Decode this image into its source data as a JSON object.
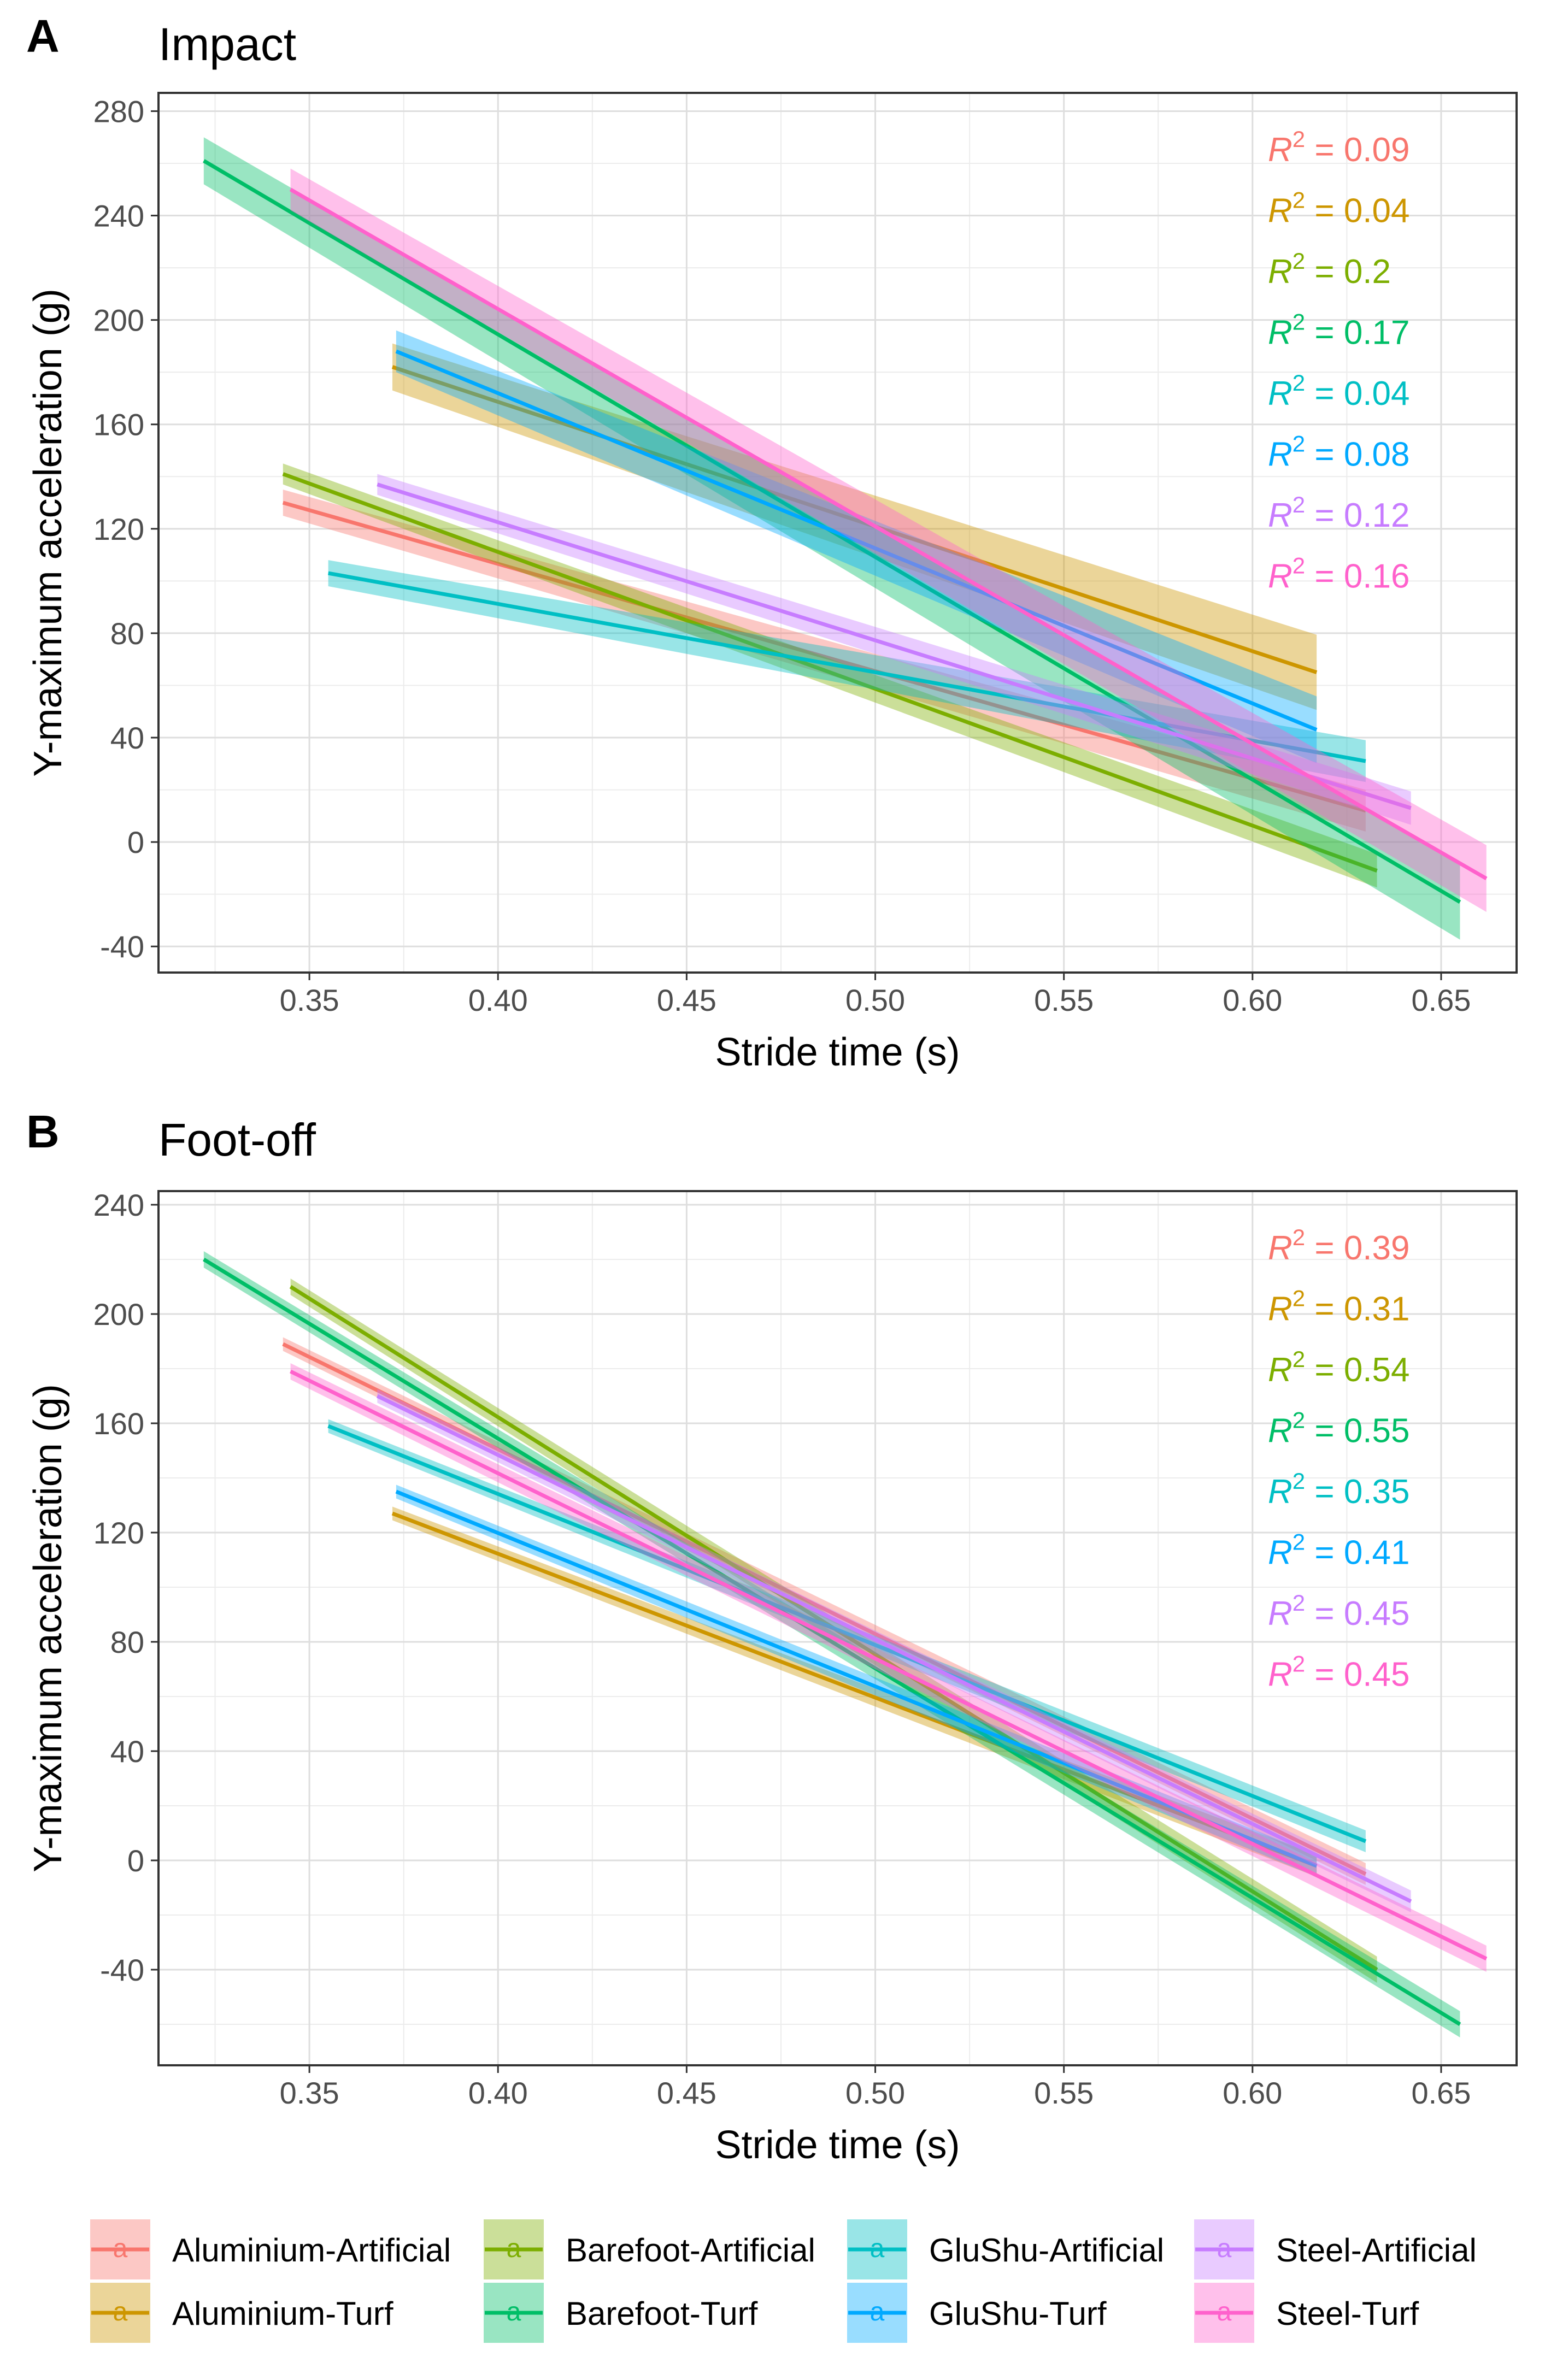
{
  "figure": {
    "panel_a_letter": "A",
    "panel_b_letter": "B"
  },
  "chart_data": [
    {
      "type": "line",
      "panel": "A",
      "title": "Impact",
      "xlabel": "Stride time (s)",
      "ylabel": "Y-maximum acceleration (g)",
      "xlim": [
        0.31,
        0.67
      ],
      "ylim": [
        -50,
        287
      ],
      "xticks": [
        0.35,
        0.4,
        0.45,
        0.5,
        0.55,
        0.6,
        0.65
      ],
      "xtick_labels": [
        "0.35",
        "0.40",
        "0.45",
        "0.50",
        "0.55",
        "0.60",
        "0.65"
      ],
      "yticks": [
        -40,
        0,
        40,
        80,
        120,
        160,
        200,
        240,
        280
      ],
      "ytick_labels": [
        "-40",
        "0",
        "40",
        "80",
        "120",
        "160",
        "200",
        "240",
        "280"
      ],
      "grid": true,
      "series": [
        {
          "name": "Aluminium-Artificial",
          "color": "#F8766D",
          "x": [
            0.343,
            0.63
          ],
          "y": [
            130,
            12
          ],
          "ci": 5,
          "r2": "0.09"
        },
        {
          "name": "Aluminium-Turf",
          "color": "#CD9600",
          "x": [
            0.372,
            0.617
          ],
          "y": [
            182,
            65
          ],
          "ci": 9,
          "r2": "0.04"
        },
        {
          "name": "Barefoot-Artificial",
          "color": "#7CAE00",
          "x": [
            0.343,
            0.633
          ],
          "y": [
            141,
            -11
          ],
          "ci": 4,
          "r2": "0.2"
        },
        {
          "name": "Barefoot-Turf",
          "color": "#00BE67",
          "x": [
            0.322,
            0.655
          ],
          "y": [
            261,
            -23
          ],
          "ci": 9,
          "r2": "0.17"
        },
        {
          "name": "GluShu-Artificial",
          "color": "#00BFC4",
          "x": [
            0.355,
            0.63
          ],
          "y": [
            103,
            31
          ],
          "ci": 5,
          "r2": "0.04"
        },
        {
          "name": "GluShu-Turf",
          "color": "#00A9FF",
          "x": [
            0.373,
            0.617
          ],
          "y": [
            188,
            43
          ],
          "ci": 8,
          "r2": "0.08"
        },
        {
          "name": "Steel-Artificial",
          "color": "#C77CFF",
          "x": [
            0.368,
            0.642
          ],
          "y": [
            137,
            13
          ],
          "ci": 4,
          "r2": "0.12"
        },
        {
          "name": "Steel-Turf",
          "color": "#FF61CC",
          "x": [
            0.345,
            0.662
          ],
          "y": [
            250,
            -14
          ],
          "ci": 8,
          "r2": "0.16"
        }
      ]
    },
    {
      "type": "line",
      "panel": "B",
      "title": "Foot-off",
      "xlabel": "Stride time (s)",
      "ylabel": "Y-maximum acceleration (g)",
      "xlim": [
        0.31,
        0.67
      ],
      "ylim": [
        -75,
        245
      ],
      "xticks": [
        0.35,
        0.4,
        0.45,
        0.5,
        0.55,
        0.6,
        0.65
      ],
      "xtick_labels": [
        "0.35",
        "0.40",
        "0.45",
        "0.50",
        "0.55",
        "0.60",
        "0.65"
      ],
      "yticks": [
        -40,
        0,
        40,
        80,
        120,
        160,
        200,
        240
      ],
      "ytick_labels": [
        "-40",
        "0",
        "40",
        "80",
        "120",
        "160",
        "200",
        "240"
      ],
      "grid": true,
      "series": [
        {
          "name": "Aluminium-Artificial",
          "color": "#F8766D",
          "x": [
            0.343,
            0.63
          ],
          "y": [
            189,
            -5
          ],
          "ci": 2.5,
          "r2": "0.39"
        },
        {
          "name": "Aluminium-Turf",
          "color": "#CD9600",
          "x": [
            0.372,
            0.617
          ],
          "y": [
            127,
            -2
          ],
          "ci": 2.5,
          "r2": "0.31"
        },
        {
          "name": "Barefoot-Artificial",
          "color": "#7CAE00",
          "x": [
            0.345,
            0.633
          ],
          "y": [
            210,
            -40
          ],
          "ci": 3,
          "r2": "0.54"
        },
        {
          "name": "Barefoot-Turf",
          "color": "#00BE67",
          "x": [
            0.322,
            0.655
          ],
          "y": [
            220,
            -60
          ],
          "ci": 3,
          "r2": "0.55"
        },
        {
          "name": "GluShu-Artificial",
          "color": "#00BFC4",
          "x": [
            0.355,
            0.63
          ],
          "y": [
            159,
            7
          ],
          "ci": 2.5,
          "r2": "0.35"
        },
        {
          "name": "GluShu-Turf",
          "color": "#00A9FF",
          "x": [
            0.373,
            0.617
          ],
          "y": [
            135,
            -2
          ],
          "ci": 2.5,
          "r2": "0.41"
        },
        {
          "name": "Steel-Artificial",
          "color": "#C77CFF",
          "x": [
            0.368,
            0.642
          ],
          "y": [
            170,
            -15
          ],
          "ci": 2.5,
          "r2": "0.45"
        },
        {
          "name": "Steel-Turf",
          "color": "#FF61CC",
          "x": [
            0.345,
            0.662
          ],
          "y": [
            179,
            -36
          ],
          "ci": 3,
          "r2": "0.45"
        }
      ]
    }
  ],
  "legend": {
    "position": "bottom",
    "key_glyph": "a",
    "items": [
      {
        "name": "Aluminium-Artificial",
        "color": "#F8766D"
      },
      {
        "name": "Aluminium-Turf",
        "color": "#CD9600"
      },
      {
        "name": "Barefoot-Artificial",
        "color": "#7CAE00"
      },
      {
        "name": "Barefoot-Turf",
        "color": "#00BE67"
      },
      {
        "name": "GluShu-Artificial",
        "color": "#00BFC4"
      },
      {
        "name": "GluShu-Turf",
        "color": "#00A9FF"
      },
      {
        "name": "Steel-Artificial",
        "color": "#C77CFF"
      },
      {
        "name": "Steel-Turf",
        "color": "#FF61CC"
      }
    ]
  }
}
